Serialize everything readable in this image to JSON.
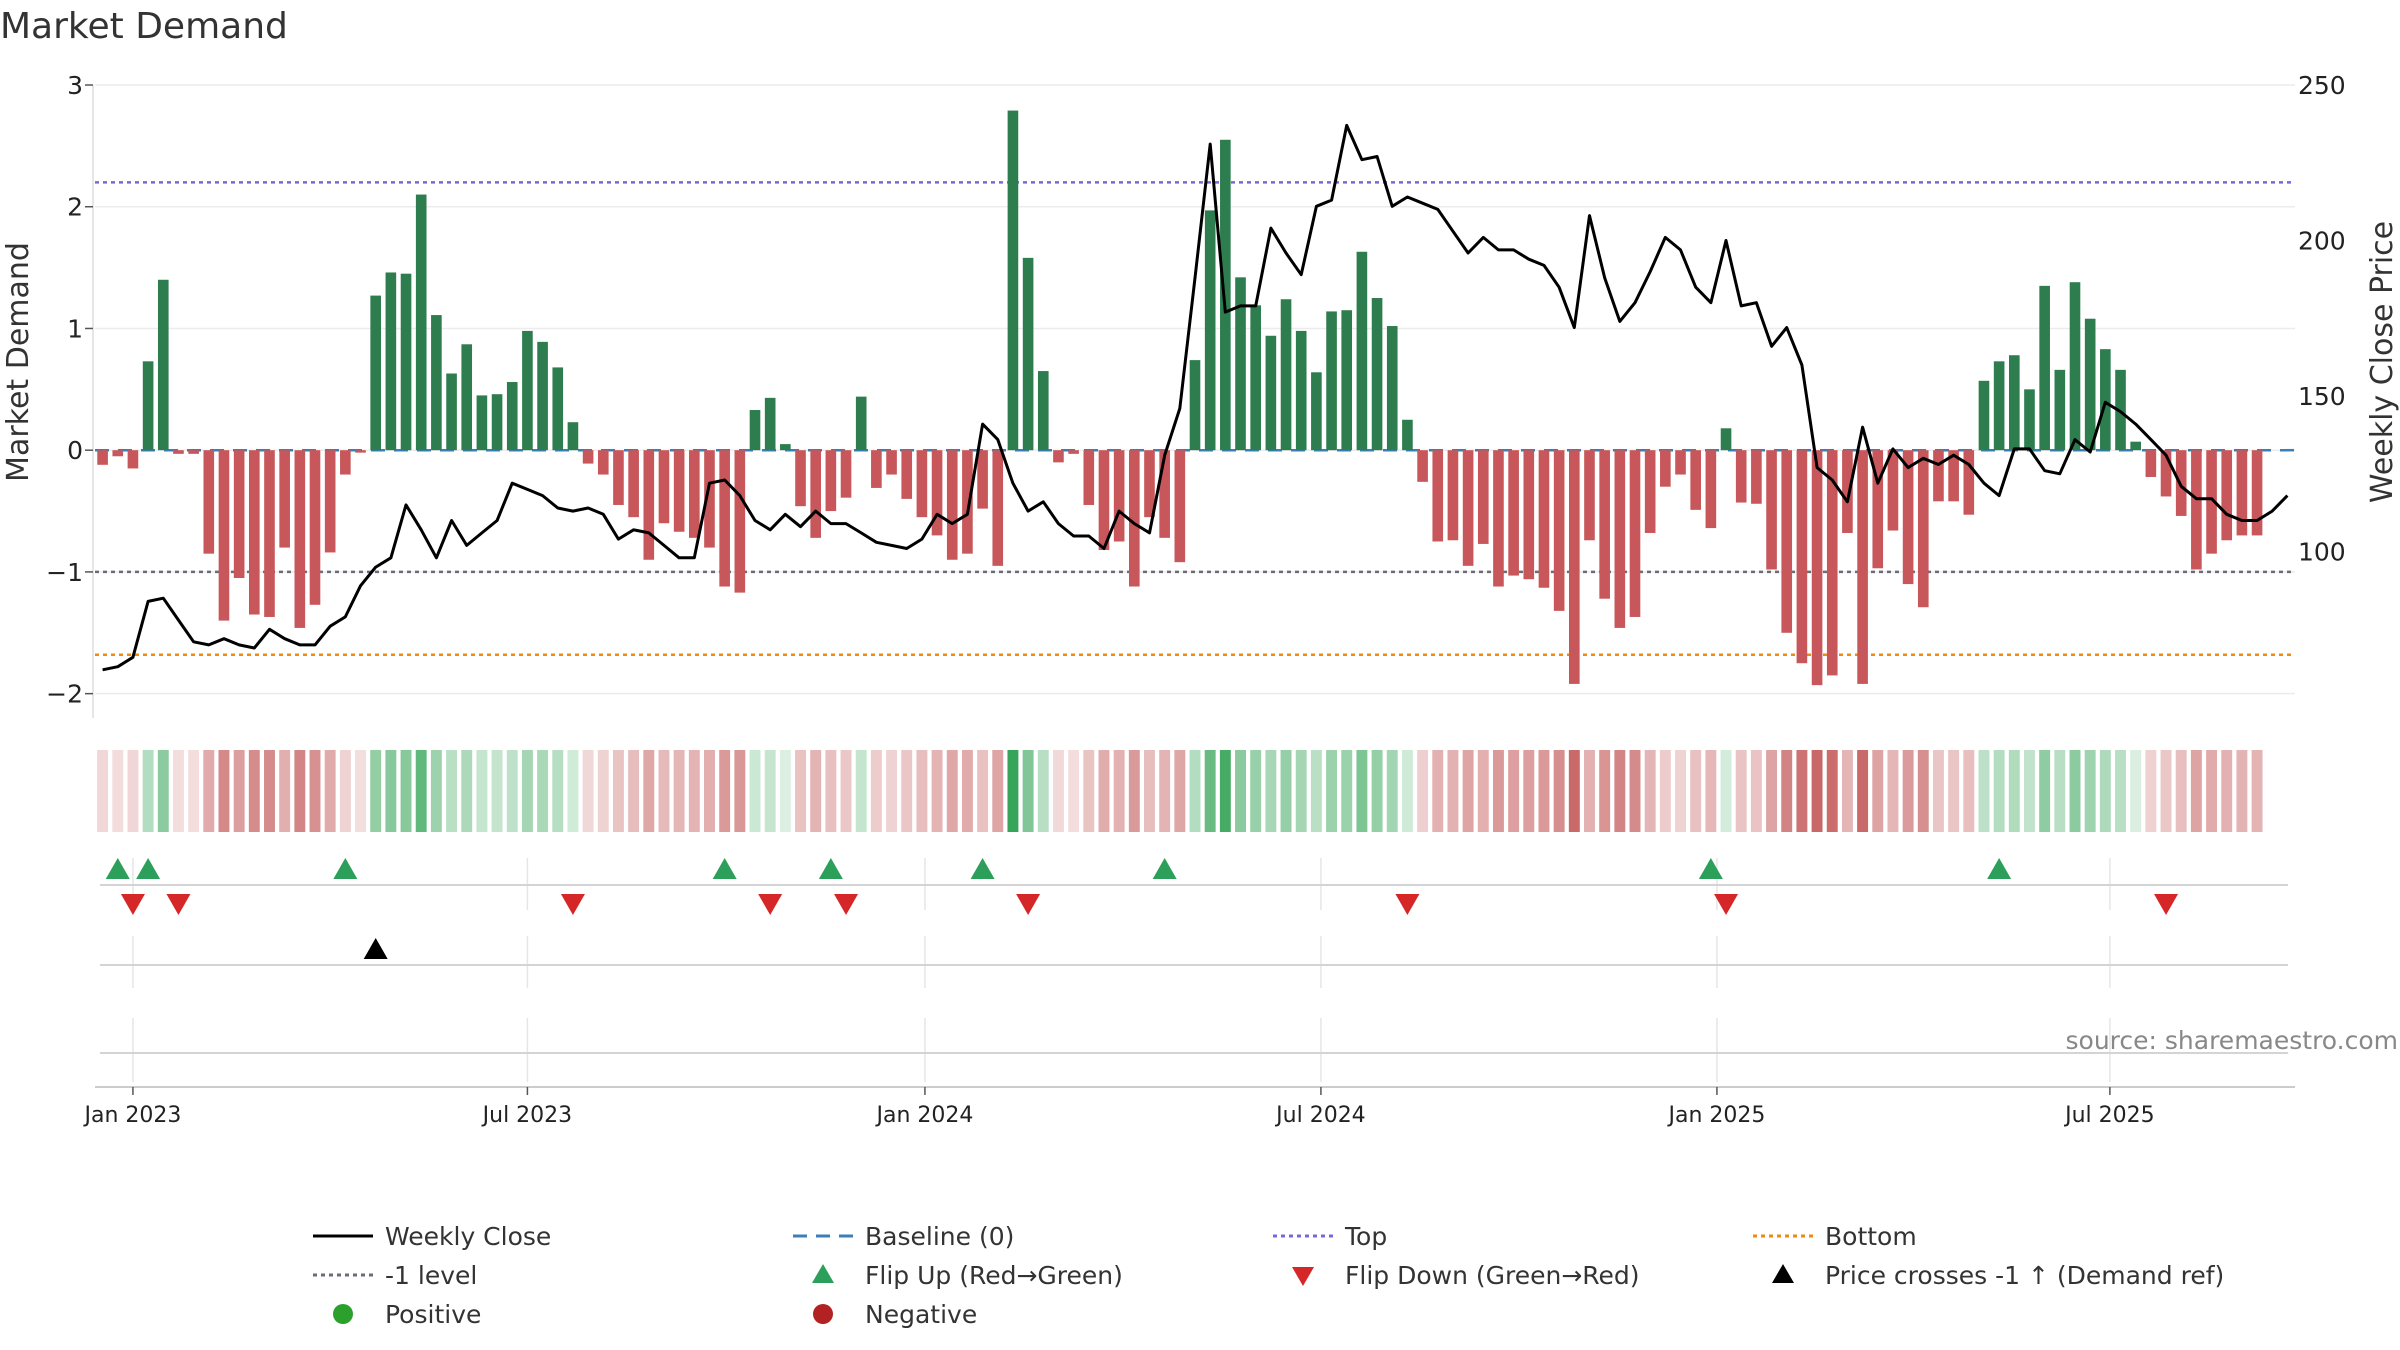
{
  "chart_data": {
    "type": "bar",
    "title": "Market Demand",
    "ylabel": "Market Demand",
    "y2label": "Weekly Close Price",
    "ylim": [
      -2.2,
      3.0
    ],
    "y2lim": [
      46.5,
      250
    ],
    "yticks": [
      -2,
      -1,
      0,
      1,
      2,
      3
    ],
    "yticklabels": [
      "−2",
      "−1",
      "0",
      "1",
      "2",
      "3"
    ],
    "y2ticks": [
      100,
      150,
      200,
      250
    ],
    "y2ticklabels": [
      "100",
      "150",
      "200",
      "250"
    ],
    "xlim": [
      -2.5,
      142.5
    ],
    "xticks": [
      {
        "label": "Jan 2023",
        "x": 0
      },
      {
        "label": "Jul 2023",
        "x": 26
      },
      {
        "label": "Jan 2024",
        "x": 52.2
      },
      {
        "label": "Jul 2024",
        "x": 78.3
      },
      {
        "label": "Jan 2025",
        "x": 104.4
      },
      {
        "label": "Jul 2025",
        "x": 130.3
      }
    ],
    "levels": {
      "top": 2.2,
      "minus_one": -1.0,
      "bottom": -1.68
    },
    "level_colors": {
      "top": "#7b68d6",
      "minus_one": "#6b6b7a",
      "bottom": "#ee8a16",
      "baseline": "#3a7fb8"
    },
    "bar_colors": {
      "positive": "#2e7d4f",
      "negative": "#c7575a"
    },
    "source": "source: sharemaestro.com",
    "weeks_start_index": -2,
    "demand": [
      -0.12,
      -0.05,
      -0.15,
      0.73,
      1.4,
      -0.03,
      -0.03,
      -0.85,
      -1.4,
      -1.05,
      -1.35,
      -1.37,
      -0.8,
      -1.46,
      -1.27,
      -0.84,
      -0.2,
      -0.02,
      1.27,
      1.46,
      1.45,
      2.1,
      1.11,
      0.63,
      0.87,
      0.45,
      0.46,
      0.56,
      0.98,
      0.89,
      0.68,
      0.23,
      -0.11,
      -0.2,
      -0.45,
      -0.55,
      -0.9,
      -0.6,
      -0.67,
      -0.72,
      -0.8,
      -1.12,
      -1.17,
      0.33,
      0.43,
      0.05,
      -0.46,
      -0.72,
      -0.5,
      -0.39,
      0.44,
      -0.31,
      -0.2,
      -0.4,
      -0.55,
      -0.7,
      -0.9,
      -0.85,
      -0.48,
      -0.95,
      2.79,
      1.58,
      0.65,
      -0.1,
      -0.03,
      -0.45,
      -0.82,
      -0.75,
      -1.12,
      -0.55,
      -0.72,
      -0.92,
      0.74,
      1.97,
      2.55,
      1.42,
      1.19,
      0.94,
      1.24,
      0.98,
      0.64,
      1.14,
      1.15,
      1.63,
      1.25,
      1.02,
      0.25,
      -0.26,
      -0.75,
      -0.74,
      -0.95,
      -0.77,
      -1.12,
      -1.03,
      -1.06,
      -1.13,
      -1.32,
      -1.92,
      -0.74,
      -1.22,
      -1.46,
      -1.37,
      -0.68,
      -0.3,
      -0.2,
      -0.49,
      -0.64,
      0.18,
      -0.43,
      -0.44,
      -0.98,
      -1.5,
      -1.75,
      -1.93,
      -1.85,
      -0.68,
      -1.92,
      -0.97,
      -0.66,
      -1.1,
      -1.29,
      -0.42,
      -0.42,
      -0.53,
      0.57,
      0.73,
      0.78,
      0.5,
      1.35,
      0.66,
      1.38,
      1.08,
      0.83,
      0.66,
      0.07,
      -0.22,
      -0.38,
      -0.54,
      -0.98,
      -0.85,
      -0.74,
      -0.7,
      -0.7
    ],
    "price": [
      62,
      63,
      66,
      84,
      85,
      78,
      71,
      70,
      72,
      70,
      69,
      75,
      72,
      70,
      70,
      76,
      79,
      89,
      95,
      98,
      115,
      107,
      98,
      110,
      102,
      106,
      110,
      122,
      120,
      118,
      114,
      113,
      114,
      112,
      104,
      107,
      106,
      102,
      98,
      98,
      122,
      123,
      118,
      110,
      107,
      112,
      108,
      113,
      109,
      109,
      106,
      103,
      102,
      101,
      104,
      112,
      109,
      112,
      141,
      136,
      122,
      113,
      116,
      109,
      105,
      105,
      101,
      113,
      109,
      106,
      131,
      146,
      188,
      231,
      177,
      179,
      179,
      204,
      196,
      189,
      211,
      213,
      237,
      226,
      227,
      211,
      214,
      212,
      210,
      203,
      196,
      201,
      197,
      197,
      194,
      192,
      185,
      172,
      208,
      188,
      174,
      180,
      190,
      201,
      197,
      185,
      180,
      200,
      179,
      180,
      166,
      172,
      160,
      127,
      123,
      116,
      140,
      122,
      133,
      127,
      130,
      128,
      131,
      128,
      122,
      118,
      133,
      133,
      126,
      125,
      136,
      132,
      148,
      145,
      141,
      136,
      131,
      121,
      117,
      117,
      112,
      110,
      110,
      113,
      118
    ],
    "colorstrip_values": [
      -0.12,
      -0.05,
      -0.15,
      0.73,
      1.4,
      -0.03,
      -0.03,
      -0.85,
      -1.4,
      -1.05,
      -1.35,
      -1.37,
      -0.8,
      -1.46,
      -1.27,
      -0.84,
      -0.2,
      -0.02,
      1.27,
      1.46,
      1.45,
      2.1,
      1.11,
      0.63,
      0.87,
      0.45,
      0.46,
      0.56,
      0.98,
      0.89,
      0.68,
      0.23,
      -0.11,
      -0.2,
      -0.45,
      -0.55,
      -0.9,
      -0.6,
      -0.67,
      -0.72,
      -0.8,
      -1.12,
      -1.17,
      0.33,
      0.43,
      0.05,
      -0.46,
      -0.72,
      -0.5,
      -0.39,
      0.44,
      -0.31,
      -0.2,
      -0.4,
      -0.55,
      -0.7,
      -0.9,
      -0.85,
      -0.48,
      -0.95,
      2.79,
      1.58,
      0.65,
      -0.1,
      -0.03,
      -0.45,
      -0.82,
      -0.75,
      -1.12,
      -0.55,
      -0.72,
      -0.92,
      0.74,
      1.97,
      2.55,
      1.42,
      1.19,
      0.94,
      1.24,
      0.98,
      0.64,
      1.14,
      1.15,
      1.63,
      1.25,
      1.02,
      0.25,
      -0.26,
      -0.75,
      -0.74,
      -0.95,
      -0.77,
      -1.12,
      -1.03,
      -1.06,
      -1.13,
      -1.32,
      -1.92,
      -0.74,
      -1.22,
      -1.46,
      -1.37,
      -0.68,
      -0.3,
      -0.2,
      -0.49,
      -0.64,
      0.18,
      -0.43,
      -0.44,
      -0.98,
      -1.5,
      -1.75,
      -1.93,
      -1.85,
      -0.68,
      -1.92,
      -0.97,
      -0.66,
      -1.1,
      -1.29,
      -0.42,
      -0.42,
      -0.53,
      0.57,
      0.73,
      0.78,
      0.5,
      1.35,
      0.66,
      1.38,
      1.08,
      0.83,
      0.66,
      0.07,
      -0.22,
      -0.38,
      -0.54,
      -0.98,
      -0.85,
      -0.74,
      -0.7,
      -0.7
    ],
    "flip_up_weeks": [
      -1,
      1,
      14,
      39,
      46,
      56,
      68,
      104,
      123
    ],
    "flip_down_weeks": [
      0,
      3,
      29,
      42,
      47,
      59,
      84,
      105,
      134
    ],
    "price_cross_weeks": [
      16
    ],
    "legend": [
      {
        "label": "Weekly Close",
        "symbol": "line-solid",
        "color": "#000000"
      },
      {
        "label": "Baseline (0)",
        "symbol": "line-dash",
        "color": "#3a7fb8"
      },
      {
        "label": "Top",
        "symbol": "line-dot",
        "color": "#7b68d6"
      },
      {
        "label": "Bottom",
        "symbol": "line-dot",
        "color": "#ee8a16"
      },
      {
        "label": "-1 level",
        "symbol": "line-dot",
        "color": "#6b6b7a"
      },
      {
        "label": "Flip Up (Red→Green)",
        "symbol": "tri-up",
        "color": "#2ca05a"
      },
      {
        "label": "Flip Down (Green→Red)",
        "symbol": "tri-down",
        "color": "#d62728"
      },
      {
        "label": "Price crosses -1 ↑ (Demand ref)",
        "symbol": "tri-up",
        "color": "#000000"
      },
      {
        "label": "Positive",
        "symbol": "circle",
        "color": "#2ca02c"
      },
      {
        "label": "Negative",
        "symbol": "circle",
        "color": "#b22222"
      }
    ]
  }
}
